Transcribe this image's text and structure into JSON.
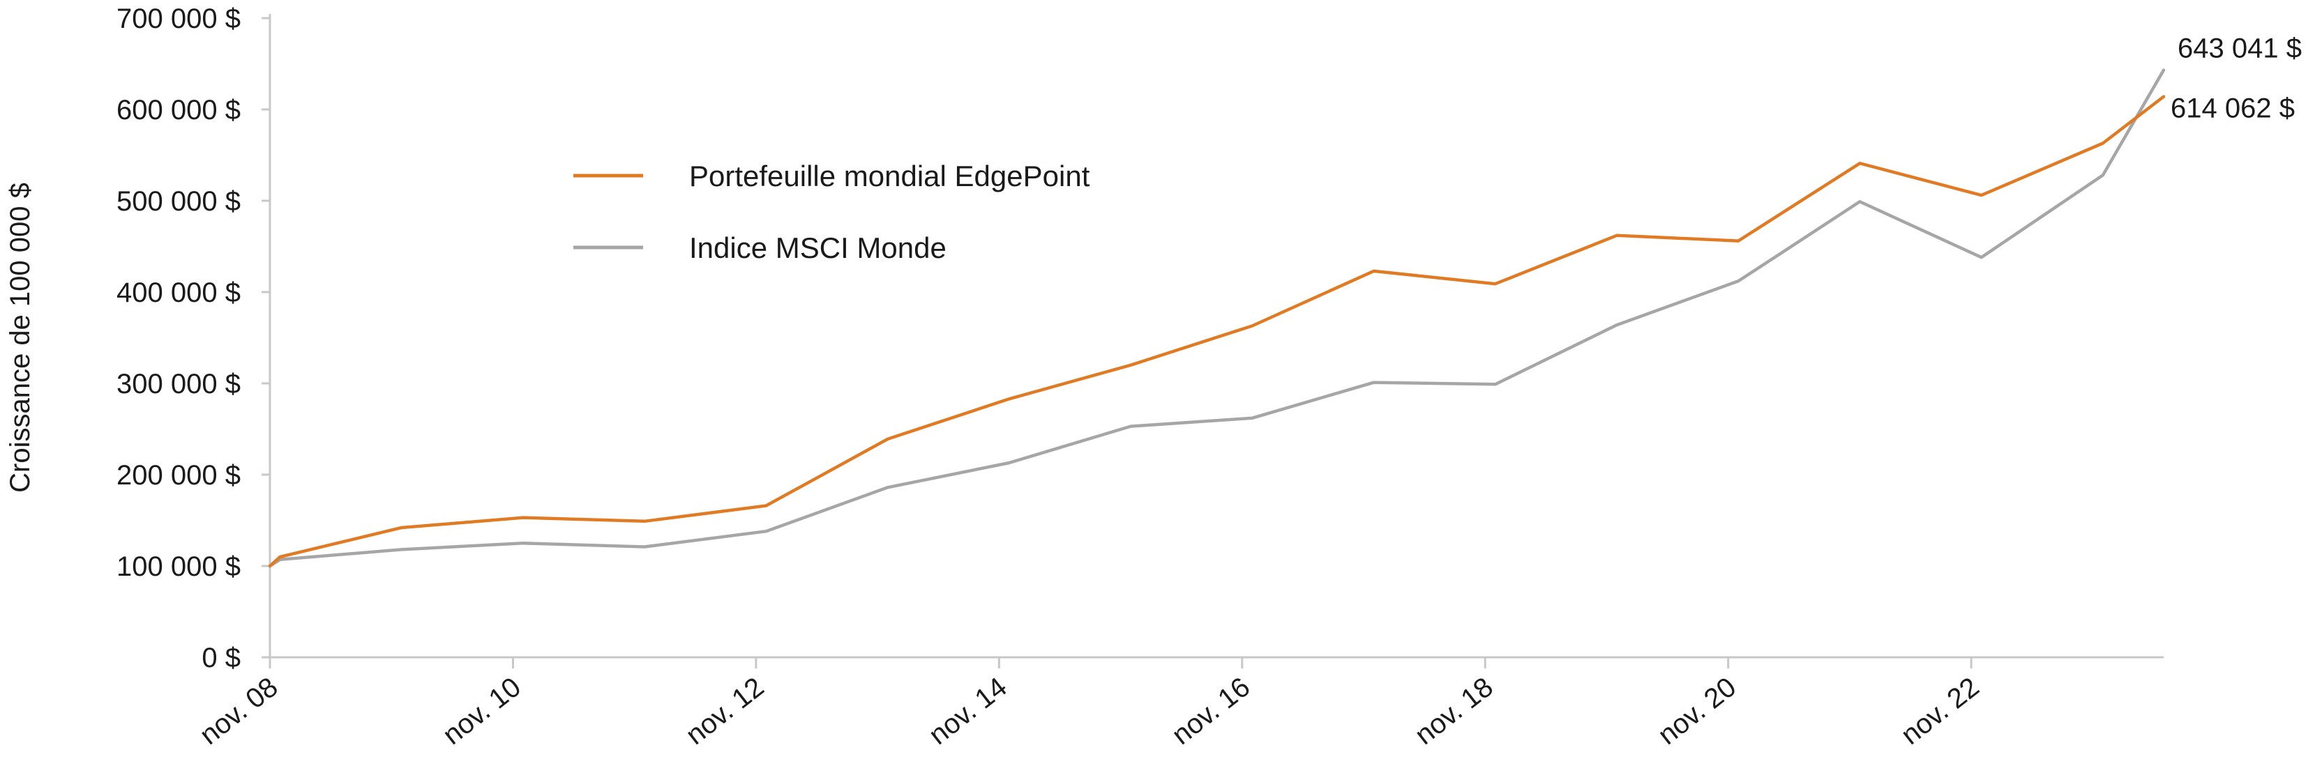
{
  "chart_data": {
    "type": "line",
    "title": "",
    "xlabel": "",
    "ylabel": "Croissance de 100 000 $",
    "ylim": [
      0,
      700000
    ],
    "yticks": [
      {
        "value": 0,
        "label": "0 $"
      },
      {
        "value": 100000,
        "label": "100 000 $"
      },
      {
        "value": 200000,
        "label": "200 000 $"
      },
      {
        "value": 300000,
        "label": "300 000 $"
      },
      {
        "value": 400000,
        "label": "400 000 $"
      },
      {
        "value": 500000,
        "label": "500 000 $"
      },
      {
        "value": 600000,
        "label": "600 000 $"
      },
      {
        "value": 700000,
        "label": "700 000 $"
      }
    ],
    "xlim": [
      "2008-11",
      "2024-06"
    ],
    "xticks": [
      {
        "value": "2008-11",
        "label": "nov. 08"
      },
      {
        "value": "2010-11",
        "label": "nov. 10"
      },
      {
        "value": "2012-11",
        "label": "nov. 12"
      },
      {
        "value": "2014-11",
        "label": "nov. 14"
      },
      {
        "value": "2016-11",
        "label": "nov. 16"
      },
      {
        "value": "2018-11",
        "label": "nov. 18"
      },
      {
        "value": "2020-11",
        "label": "nov. 20"
      },
      {
        "value": "2022-11",
        "label": "nov. 22"
      }
    ],
    "legend_position": "upper-left",
    "series": [
      {
        "name": "Portefeuille mondial EdgePoint",
        "color": "#e07b24",
        "points": [
          {
            "x": "2008-11",
            "y": 100000
          },
          {
            "x": "2008-12",
            "y": 110000
          },
          {
            "x": "2009-12",
            "y": 142000
          },
          {
            "x": "2010-12",
            "y": 153000
          },
          {
            "x": "2011-12",
            "y": 149000
          },
          {
            "x": "2012-12",
            "y": 166000
          },
          {
            "x": "2013-12",
            "y": 239000
          },
          {
            "x": "2014-12",
            "y": 283000
          },
          {
            "x": "2015-12",
            "y": 320000
          },
          {
            "x": "2016-12",
            "y": 363000
          },
          {
            "x": "2017-12",
            "y": 423000
          },
          {
            "x": "2018-12",
            "y": 409000
          },
          {
            "x": "2019-12",
            "y": 462000
          },
          {
            "x": "2020-12",
            "y": 456000
          },
          {
            "x": "2021-12",
            "y": 541000
          },
          {
            "x": "2022-12",
            "y": 506000
          },
          {
            "x": "2023-12",
            "y": 563000
          },
          {
            "x": "2024-06",
            "y": 614062
          }
        ],
        "end_label": "614 062 $"
      },
      {
        "name": "Indice MSCI Monde",
        "color": "#a6a6a6",
        "points": [
          {
            "x": "2008-11",
            "y": 100000
          },
          {
            "x": "2008-12",
            "y": 107000
          },
          {
            "x": "2009-12",
            "y": 118000
          },
          {
            "x": "2010-12",
            "y": 125000
          },
          {
            "x": "2011-12",
            "y": 121000
          },
          {
            "x": "2012-12",
            "y": 138000
          },
          {
            "x": "2013-12",
            "y": 186000
          },
          {
            "x": "2014-12",
            "y": 213000
          },
          {
            "x": "2015-12",
            "y": 253000
          },
          {
            "x": "2016-12",
            "y": 262000
          },
          {
            "x": "2017-12",
            "y": 301000
          },
          {
            "x": "2018-12",
            "y": 299000
          },
          {
            "x": "2019-12",
            "y": 364000
          },
          {
            "x": "2020-12",
            "y": 412000
          },
          {
            "x": "2021-12",
            "y": 499000
          },
          {
            "x": "2022-12",
            "y": 438000
          },
          {
            "x": "2023-12",
            "y": 528000
          },
          {
            "x": "2024-06",
            "y": 643041
          }
        ],
        "end_label": "643 041 $"
      }
    ]
  }
}
